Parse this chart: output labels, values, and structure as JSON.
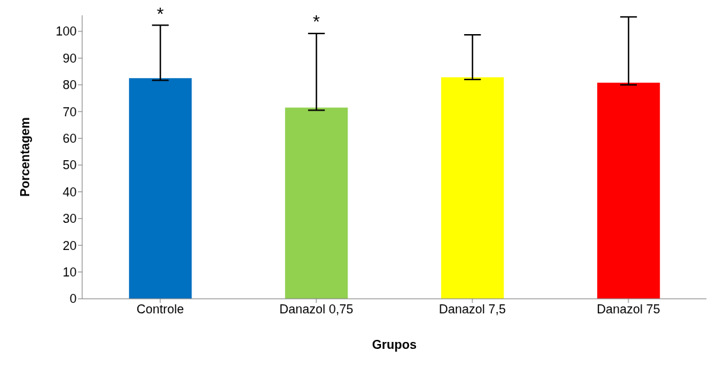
{
  "chart_data": {
    "type": "bar",
    "xlabel": "Grupos",
    "ylabel": "Porcentagem",
    "categories": [
      "Controle",
      "Danazol 0,75",
      "Danazol 7,5",
      "Danazol 75"
    ],
    "values": [
      82.5,
      71.5,
      82.8,
      80.8
    ],
    "colors": [
      "#0070c0",
      "#92d050",
      "#ffff00",
      "#ff0000"
    ],
    "errors": [
      [
        81.7,
        102.3
      ],
      [
        70.5,
        99.2
      ],
      [
        82,
        98.7
      ],
      [
        80,
        105.4
      ]
    ],
    "ylim": [
      0,
      106
    ],
    "yticks": [
      0,
      10,
      20,
      30,
      40,
      50,
      60,
      70,
      80,
      90,
      100
    ],
    "grid": false,
    "annotations": [
      {
        "text": "*",
        "x": "Controle",
        "y": 103
      },
      {
        "text": "*",
        "x": "Danazol 0,75",
        "y": 100
      }
    ]
  }
}
